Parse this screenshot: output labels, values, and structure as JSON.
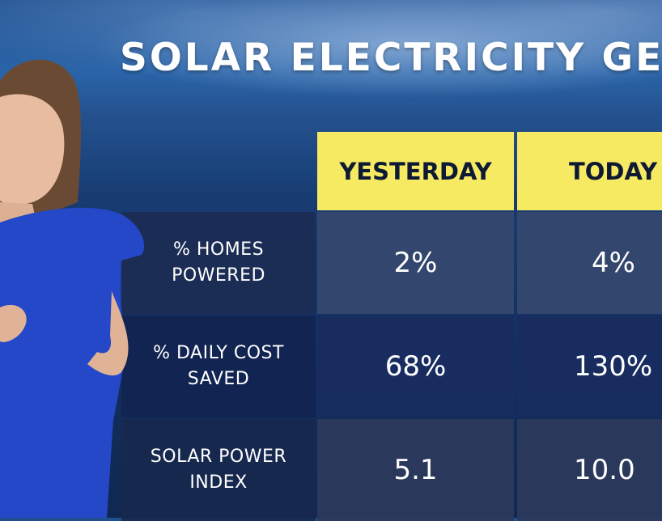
{
  "title": "SOLAR ELECTRICITY GE",
  "table": {
    "headers": [
      "YESTERDAY",
      "TODAY"
    ],
    "rows": [
      {
        "label": "% HOMES POWERED",
        "label_lines": [
          "% HOMES",
          "POWERED"
        ],
        "yesterday": "2%",
        "today": "4%"
      },
      {
        "label": "% DAILY COST SAVED",
        "label_lines": [
          "% DAILY COST",
          "SAVED"
        ],
        "yesterday": "68%",
        "today": "130%"
      },
      {
        "label": "SOLAR POWER INDEX",
        "label_lines": [
          "SOLAR POWER",
          "INDEX"
        ],
        "yesterday": "5.1",
        "today": "10.0"
      }
    ]
  },
  "colors": {
    "header_bg": "#f7ea63",
    "header_text": "#0e1a33",
    "dress": "#2448c8"
  }
}
